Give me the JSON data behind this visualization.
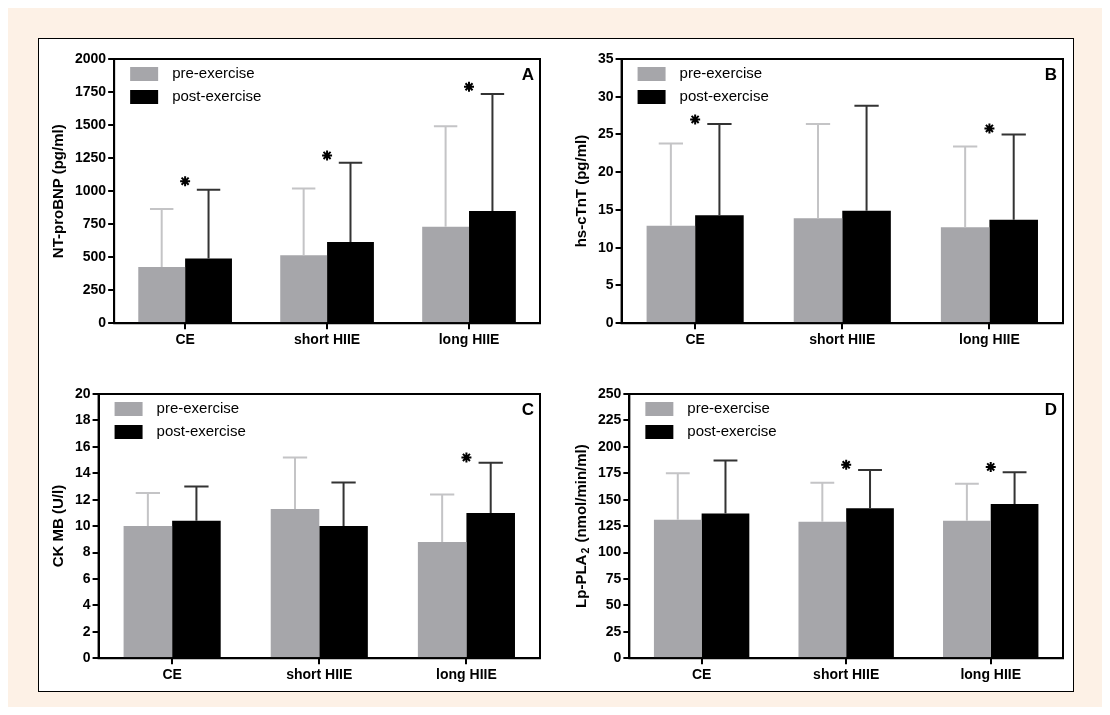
{
  "chart_data": [
    {
      "type": "bar",
      "ylabel": "NT-proBNP (pg/ml)",
      "categories": [
        "CE",
        "short HIIE",
        "long HIIE"
      ],
      "ylim": [
        0,
        2000
      ],
      "yticks": [
        0,
        250,
        500,
        750,
        1000,
        1250,
        1500,
        1750,
        2000
      ],
      "grid": false,
      "legend": "top left",
      "annotations": [
        "A"
      ],
      "series": [
        {
          "name": "pre-exercise",
          "color": "#a6a6aa",
          "values": [
            425,
            515,
            730
          ],
          "errors": [
            [
              425,
              865
            ],
            [
              515,
              1020
            ],
            [
              730,
              1490
            ]
          ]
        },
        {
          "name": "post-exercise",
          "color": "#000000",
          "values": [
            490,
            615,
            850
          ],
          "errors": [
            [
              490,
              1010
            ],
            [
              615,
              1215
            ],
            [
              850,
              1735
            ]
          ]
        },
        {
          "type": "scatter",
          "marker": "cross",
          "color": "#000000",
          "x": [
            "CE",
            "short HIIE",
            "long HIIE"
          ],
          "values": [
            1075,
            1270,
            1790
          ]
        }
      ]
    },
    {
      "type": "bar",
      "ylabel": "hs-cTnT (pg/ml)",
      "categories": [
        "CE",
        "short HIIE",
        "long HIIE"
      ],
      "ylim": [
        0,
        35
      ],
      "yticks": [
        0,
        5,
        10,
        15,
        20,
        25,
        30,
        35
      ],
      "grid": false,
      "legend": "top left",
      "annotations": [
        "B"
      ],
      "series": [
        {
          "name": "pre-exercise",
          "color": "#a6a6aa",
          "values": [
            12.9,
            13.9,
            12.7
          ],
          "errors": [
            [
              12.9,
              23.8
            ],
            [
              13.9,
              26.4
            ],
            [
              12.7,
              23.4
            ]
          ]
        },
        {
          "name": "post-exercise",
          "color": "#000000",
          "values": [
            14.3,
            14.9,
            13.7
          ],
          "errors": [
            [
              14.3,
              26.4
            ],
            [
              14.9,
              28.8
            ],
            [
              13.7,
              25
            ]
          ]
        },
        {
          "type": "scatter",
          "marker": "cross",
          "color": "#000000",
          "x": [
            "CE",
            "long HIIE"
          ],
          "values": [
            27,
            25.8
          ]
        }
      ]
    },
    {
      "type": "bar",
      "ylabel": "CK MB (U/l)",
      "categories": [
        "CE",
        "short HIIE",
        "long HIIE"
      ],
      "ylim": [
        0,
        20
      ],
      "yticks": [
        0,
        2,
        4,
        6,
        8,
        10,
        12,
        14,
        16,
        18,
        20
      ],
      "grid": false,
      "legend": "top left",
      "annotations": [
        "C"
      ],
      "series": [
        {
          "name": "pre-exercise",
          "color": "#a6a6aa",
          "values": [
            10,
            11.3,
            8.8
          ],
          "errors": [
            [
              10,
              12.5
            ],
            [
              11.3,
              15.2
            ],
            [
              8.8,
              12.4
            ]
          ]
        },
        {
          "name": "post-exercise",
          "color": "#000000",
          "values": [
            10.4,
            10,
            11
          ],
          "errors": [
            [
              10.4,
              13
            ],
            [
              10,
              13.3
            ],
            [
              11,
              14.8
            ]
          ]
        },
        {
          "type": "scatter",
          "marker": "cross",
          "color": "#000000",
          "x": [
            "long HIIE"
          ],
          "values": [
            15.2
          ]
        }
      ]
    },
    {
      "type": "bar",
      "ylabel": "Lp-PLA$_{2}$ (nmol/min/ml)",
      "categories": [
        "CE",
        "short HIIE",
        "long HIIE"
      ],
      "ylim": [
        0,
        250
      ],
      "yticks": [
        0,
        25,
        50,
        75,
        100,
        125,
        150,
        175,
        200,
        225,
        250
      ],
      "grid": false,
      "legend": "top left",
      "annotations": [
        "D"
      ],
      "series": [
        {
          "name": "pre-exercise",
          "color": "#a6a6aa",
          "values": [
            131,
            129,
            130
          ],
          "errors": [
            [
              131,
              175
            ],
            [
              129,
              166
            ],
            [
              130,
              165
            ]
          ]
        },
        {
          "name": "post-exercise",
          "color": "#000000",
          "values": [
            137,
            142,
            146
          ],
          "errors": [
            [
              137,
              187
            ],
            [
              142,
              178
            ],
            [
              146,
              176
            ]
          ]
        },
        {
          "type": "scatter",
          "marker": "cross",
          "color": "#000000",
          "x": [
            "short HIIE",
            "long HIIE"
          ],
          "values": [
            183,
            181
          ]
        }
      ]
    }
  ]
}
